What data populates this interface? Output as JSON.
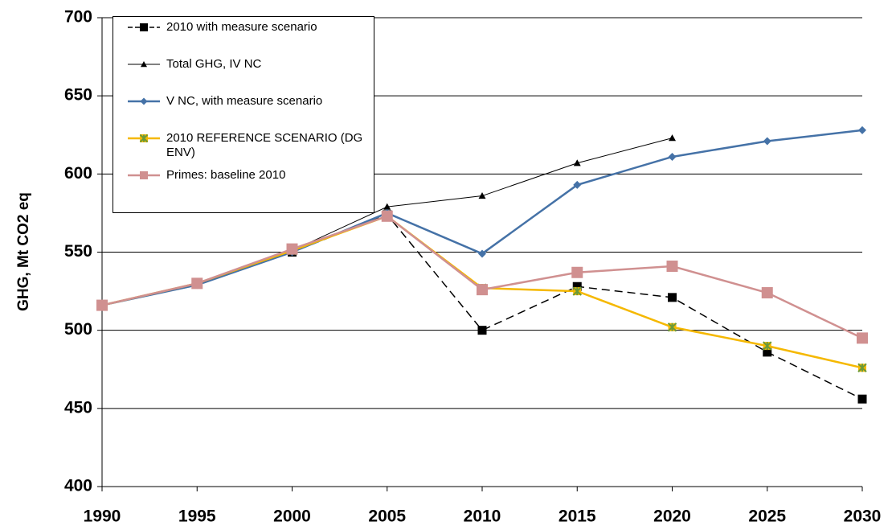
{
  "chart_data": {
    "type": "line",
    "y_label": "GHG, Mt CO2 eq",
    "x": [
      1990,
      1995,
      2000,
      2005,
      2010,
      2015,
      2020,
      2025,
      2030
    ],
    "xlim": [
      1990,
      2030
    ],
    "xticks": [
      1990,
      1995,
      2000,
      2005,
      2010,
      2015,
      2020,
      2025,
      2030
    ],
    "ylim": [
      400,
      700
    ],
    "yticks": [
      400,
      450,
      500,
      550,
      600,
      650,
      700
    ],
    "grid": true,
    "series": [
      {
        "name": "2010 with measure scenario",
        "color": "#000000",
        "marker": "square",
        "marker_color": "#000000",
        "dash": true,
        "line_width": 1.5,
        "values": [
          516,
          530,
          550,
          574,
          500,
          528,
          521,
          486,
          456
        ]
      },
      {
        "name": "Total GHG, IV  NC",
        "color": "#000000",
        "marker": "triangle",
        "marker_color": "#000000",
        "dash": false,
        "line_width": 1,
        "values": [
          516,
          529,
          551,
          579,
          586,
          607,
          623,
          null,
          null
        ]
      },
      {
        "name": "V NC, with measure scenario",
        "color": "#4572a7",
        "marker": "diamond",
        "marker_color": "#4572a7",
        "dash": false,
        "line_width": 2.5,
        "values": [
          516,
          529,
          550,
          575,
          549,
          593,
          611,
          621,
          628
        ]
      },
      {
        "name": "2010 REFERENCE SCENARIO (DG ENV)",
        "color": "#f5b800",
        "marker": "star",
        "marker_color": "#6a9a3a",
        "dash": false,
        "line_width": 2.5,
        "values": [
          516,
          530,
          551,
          573,
          527,
          525,
          502,
          490,
          476
        ]
      },
      {
        "name": "Primes: baseline 2010",
        "color": "#d09090",
        "marker": "square",
        "marker_color": "#d09090",
        "dash": false,
        "line_width": 2.5,
        "values": [
          516,
          530,
          552,
          573,
          526,
          537,
          541,
          524,
          495
        ]
      }
    ]
  }
}
